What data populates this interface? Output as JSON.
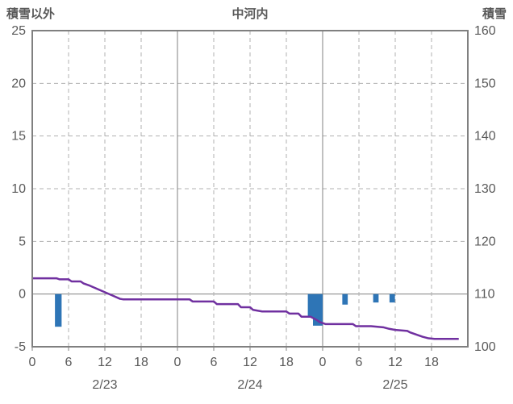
{
  "header": {
    "left_axis_title": "積雪以外",
    "title": "中河内",
    "right_axis_title": "積雪"
  },
  "chart_data": {
    "type": "line+bar",
    "title": "中河内",
    "legend_position": "none",
    "grid_on": true,
    "colors": {
      "grid": "#b0b0b0",
      "axis": "#808080",
      "line": "#7030a0",
      "bar": "#2e75b6",
      "text": "#595959"
    },
    "left_axis": {
      "label": "積雪以外",
      "min": -5,
      "max": 25,
      "ticks": [
        25,
        20,
        15,
        10,
        5,
        0,
        -5
      ]
    },
    "right_axis": {
      "label": "積雪",
      "min": 100,
      "max": 160,
      "ticks": [
        160,
        150,
        140,
        130,
        120,
        110,
        100
      ]
    },
    "x_axis": {
      "min_hour": 0,
      "max_hour": 72,
      "tick_interval": 6,
      "tick_labels": [
        "0",
        "6",
        "12",
        "18",
        "0",
        "6",
        "12",
        "18",
        "0",
        "6",
        "12",
        "18"
      ],
      "day_labels": [
        {
          "label": "2/23",
          "center_hour": 12
        },
        {
          "label": "2/24",
          "center_hour": 36
        },
        {
          "label": "2/25",
          "center_hour": 60
        }
      ]
    },
    "grid": {
      "solid_vertical_hours": [
        24,
        48
      ],
      "dashed_vertical_hours": [
        6,
        12,
        18,
        30,
        36,
        42,
        54,
        60,
        66
      ],
      "zero_line_left": 0
    },
    "series": [
      {
        "name": "積雪",
        "type": "line",
        "axis": "right",
        "color": "#7030a0",
        "points": [
          [
            0,
            113
          ],
          [
            4,
            113
          ],
          [
            4.5,
            112.8
          ],
          [
            6,
            112.8
          ],
          [
            6.5,
            112.4
          ],
          [
            8,
            112.4
          ],
          [
            8.5,
            112
          ],
          [
            9.5,
            111.6
          ],
          [
            10.5,
            111.1
          ],
          [
            11.5,
            110.6
          ],
          [
            12.5,
            110.1
          ],
          [
            13.5,
            109.6
          ],
          [
            14.5,
            109.1
          ],
          [
            15,
            109
          ],
          [
            26,
            109
          ],
          [
            26.5,
            108.6
          ],
          [
            30,
            108.6
          ],
          [
            30.5,
            108.1
          ],
          [
            34,
            108.1
          ],
          [
            34.5,
            107.5
          ],
          [
            36,
            107.5
          ],
          [
            36.5,
            107
          ],
          [
            38,
            106.7
          ],
          [
            42,
            106.7
          ],
          [
            42.5,
            106.3
          ],
          [
            44,
            106.3
          ],
          [
            44.5,
            105.7
          ],
          [
            46,
            105.7
          ],
          [
            47,
            105.1
          ],
          [
            47.5,
            104.7
          ],
          [
            48.5,
            104.3
          ],
          [
            53,
            104.3
          ],
          [
            53.5,
            103.9
          ],
          [
            56,
            103.9
          ],
          [
            58,
            103.7
          ],
          [
            59,
            103.4
          ],
          [
            60,
            103.2
          ],
          [
            62,
            103
          ],
          [
            62.5,
            102.7
          ],
          [
            63.5,
            102.3
          ],
          [
            64.5,
            101.9
          ],
          [
            65.5,
            101.6
          ],
          [
            66.5,
            101.5
          ],
          [
            70.5,
            101.5
          ]
        ]
      },
      {
        "name": "積雪以外",
        "type": "bar",
        "axis": "left",
        "color": "#2e75b6",
        "bars": [
          {
            "hour": 4.3,
            "value": -3.1,
            "width": 1.1
          },
          {
            "hour": 46.0,
            "value": -2.2,
            "width": 0.9
          },
          {
            "hour": 47.2,
            "value": -3.0,
            "width": 1.6
          },
          {
            "hour": 51.7,
            "value": -1.0,
            "width": 0.9
          },
          {
            "hour": 56.8,
            "value": -0.8,
            "width": 0.9
          },
          {
            "hour": 59.5,
            "value": -0.8,
            "width": 0.9
          }
        ]
      }
    ]
  }
}
